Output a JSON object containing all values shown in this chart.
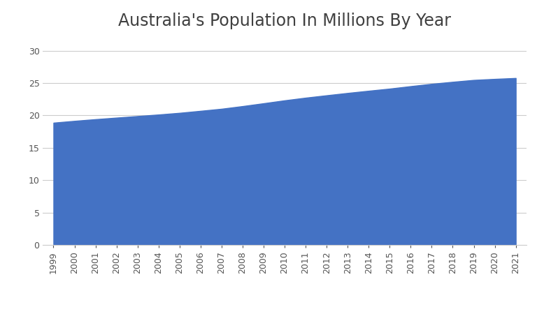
{
  "title": "Australia's Population In Millions By Year",
  "years": [
    1999,
    2000,
    2001,
    2002,
    2003,
    2004,
    2005,
    2006,
    2007,
    2008,
    2009,
    2010,
    2011,
    2012,
    2013,
    2014,
    2015,
    2016,
    2017,
    2018,
    2019,
    2020,
    2021
  ],
  "population": [
    18.87,
    19.15,
    19.41,
    19.65,
    19.89,
    20.13,
    20.39,
    20.7,
    21.02,
    21.43,
    21.87,
    22.32,
    22.73,
    23.1,
    23.46,
    23.8,
    24.13,
    24.51,
    24.87,
    25.18,
    25.47,
    25.63,
    25.77
  ],
  "fill_color": "#4472C4",
  "background_color": "#ffffff",
  "ylim": [
    0,
    32
  ],
  "yticks": [
    0,
    5,
    10,
    15,
    20,
    25,
    30
  ],
  "grid_color": "#cccccc",
  "title_fontsize": 17,
  "tick_fontsize": 9,
  "title_color": "#404040",
  "tick_color": "#555555"
}
